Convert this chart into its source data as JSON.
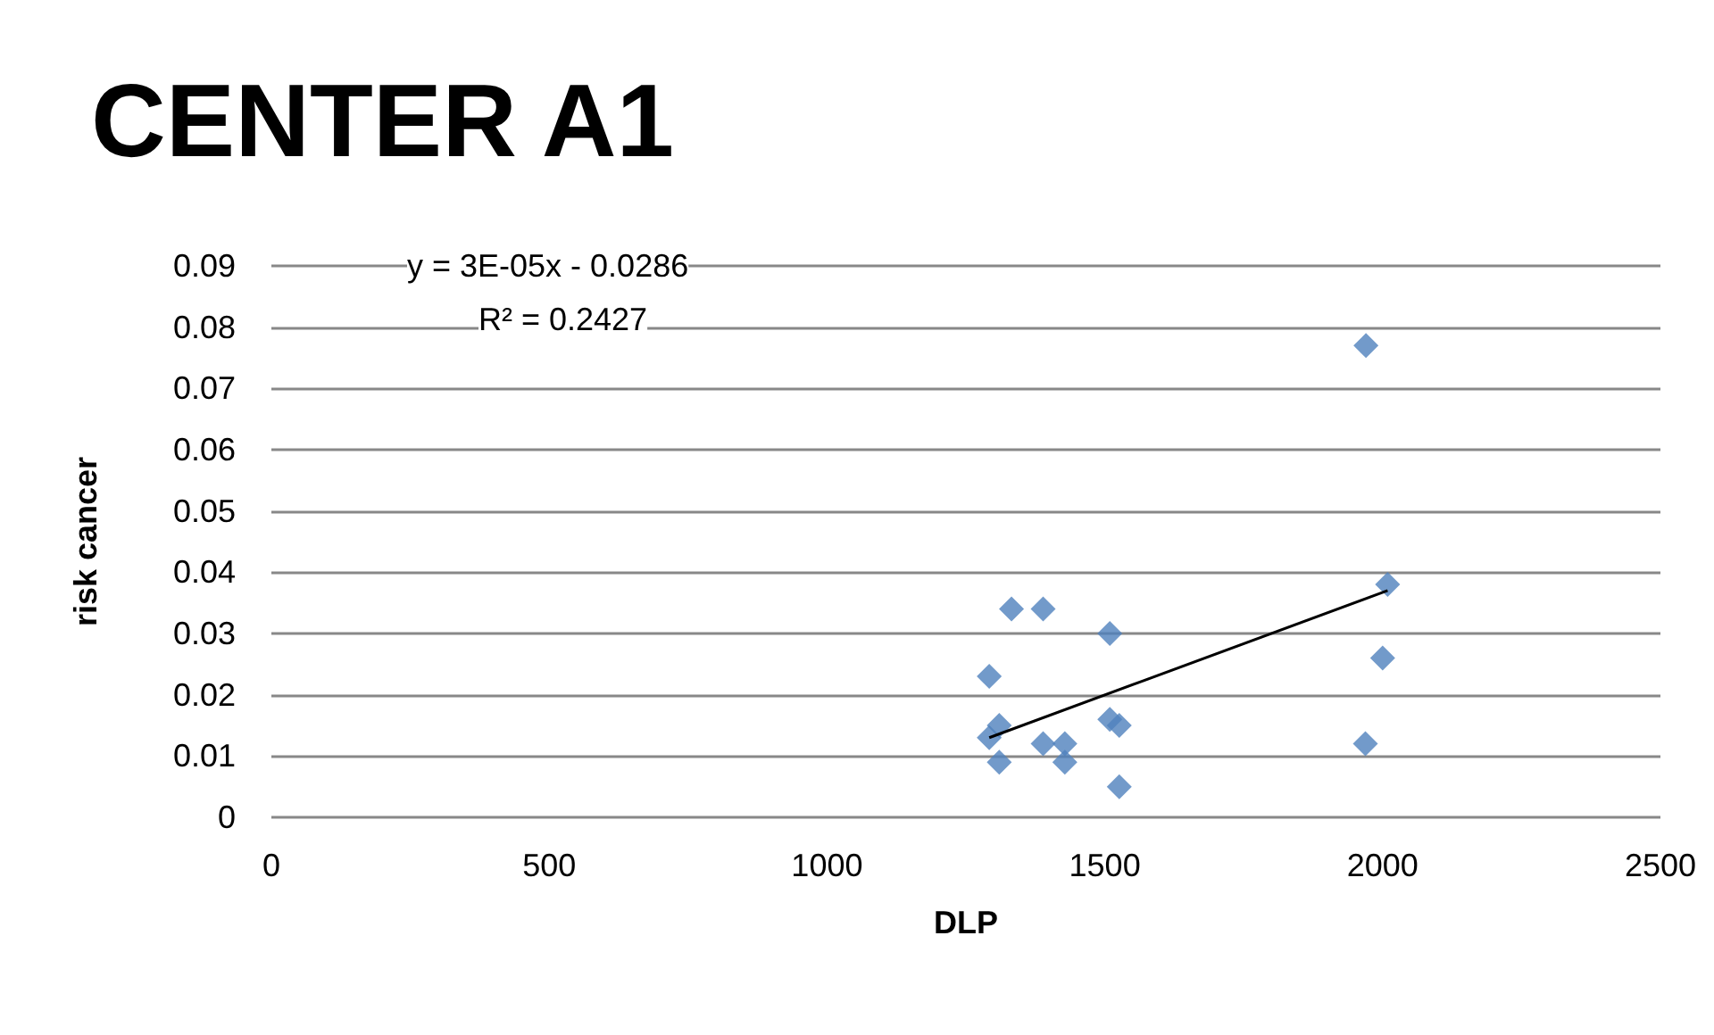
{
  "chart_data": {
    "type": "scatter",
    "title": "CENTER A1",
    "xlabel": "DLP",
    "ylabel": "risk cancer",
    "annotations": [
      "y = 3E-05x - 0.0286",
      "R² = 0.2427"
    ],
    "series": [
      {
        "marker": "diamond",
        "color": "#4f81bd",
        "x": [
          1332,
          1389,
          1509,
          1292,
          1292,
          1310,
          1310,
          1389,
          1428,
          1428,
          1509,
          1526,
          1526,
          2009,
          2000,
          1969,
          1970
        ],
        "values": [
          0.034,
          0.034,
          0.03,
          0.023,
          0.013,
          0.015,
          0.009,
          0.012,
          0.012,
          0.009,
          0.016,
          0.015,
          0.005,
          0.038,
          0.026,
          0.012,
          0.077
        ]
      },
      {
        "type": "line",
        "marker": "none",
        "color": "#000000",
        "x": [
          1292,
          2009
        ],
        "values": [
          0.013,
          0.037
        ]
      }
    ],
    "xlim": [
      0,
      2500
    ],
    "xticks": [
      0,
      500,
      1000,
      1500,
      2000,
      2500
    ],
    "ylim": [
      0,
      0.09
    ],
    "yticks": [
      0,
      0.01,
      0.02,
      0.03,
      0.04,
      0.05,
      0.06,
      0.07,
      0.08,
      0.09
    ],
    "grid": "y",
    "line_style": "solid"
  }
}
